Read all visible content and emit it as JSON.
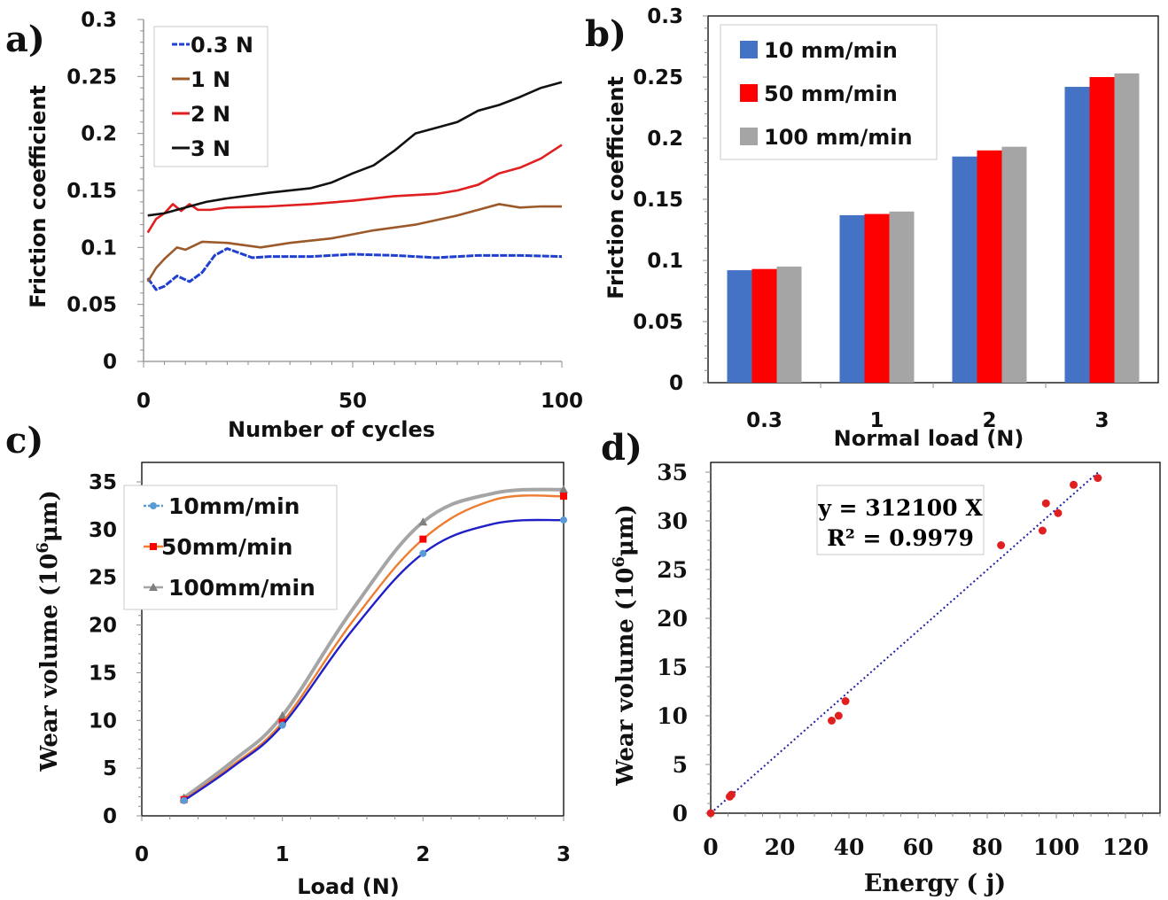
{
  "chart_data": [
    {
      "panel": "a)",
      "type": "line",
      "xlabel": "Number of cycles",
      "ylabel": "Friction coefficient",
      "xlim": [
        0,
        100
      ],
      "ylim": [
        0,
        0.3
      ],
      "xticks": [
        "0",
        "50",
        "100"
      ],
      "yticks": [
        "0",
        "0.05",
        "0.1",
        "0.15",
        "0.2",
        "0.25",
        "0.3"
      ],
      "legend_position": "top-left",
      "series": [
        {
          "name": "0.3 N",
          "color": "#1f3fd0",
          "x": [
            1,
            3,
            5,
            8,
            11,
            14,
            17,
            20,
            23,
            26,
            30,
            40,
            50,
            60,
            70,
            80,
            90,
            100
          ],
          "y": [
            0.073,
            0.063,
            0.066,
            0.075,
            0.07,
            0.078,
            0.093,
            0.099,
            0.095,
            0.091,
            0.092,
            0.092,
            0.094,
            0.093,
            0.091,
            0.093,
            0.093,
            0.092
          ]
        },
        {
          "name": "1 N",
          "color": "#9c5a2a",
          "x": [
            1,
            3,
            5,
            8,
            10,
            14,
            20,
            28,
            35,
            45,
            55,
            65,
            75,
            80,
            85,
            90,
            95,
            100
          ],
          "y": [
            0.07,
            0.082,
            0.09,
            0.1,
            0.098,
            0.105,
            0.104,
            0.1,
            0.104,
            0.108,
            0.115,
            0.12,
            0.128,
            0.133,
            0.138,
            0.135,
            0.136,
            0.136
          ]
        },
        {
          "name": "2 N",
          "color": "#e02020",
          "x": [
            1,
            3,
            5,
            7,
            9,
            11,
            13,
            16,
            20,
            30,
            40,
            50,
            60,
            70,
            75,
            80,
            85,
            90,
            95,
            100
          ],
          "y": [
            0.113,
            0.125,
            0.13,
            0.138,
            0.132,
            0.138,
            0.133,
            0.133,
            0.135,
            0.136,
            0.138,
            0.141,
            0.145,
            0.147,
            0.15,
            0.155,
            0.165,
            0.17,
            0.178,
            0.19
          ]
        },
        {
          "name": "3 N",
          "color": "#111111",
          "x": [
            1,
            5,
            10,
            15,
            20,
            30,
            40,
            45,
            50,
            55,
            60,
            65,
            70,
            75,
            80,
            85,
            90,
            95,
            100
          ],
          "y": [
            0.128,
            0.13,
            0.135,
            0.14,
            0.143,
            0.148,
            0.152,
            0.157,
            0.165,
            0.172,
            0.185,
            0.2,
            0.205,
            0.21,
            0.22,
            0.225,
            0.232,
            0.24,
            0.245
          ]
        }
      ]
    },
    {
      "panel": "b)",
      "type": "bar",
      "xlabel": "Normal load (N)",
      "ylabel": "Friction coefficient",
      "categories": [
        "0.3",
        "1",
        "2",
        "3"
      ],
      "ylim": [
        0,
        0.3
      ],
      "yticks": [
        "0",
        "0.05",
        "0.1",
        "0.15",
        "0.2",
        "0.25",
        "0.3"
      ],
      "legend_position": "top-left",
      "series": [
        {
          "name": "10 mm/min",
          "color": "#4472c4",
          "values": [
            0.092,
            0.137,
            0.185,
            0.242
          ]
        },
        {
          "name": "50 mm/min",
          "color": "#ff0000",
          "values": [
            0.093,
            0.138,
            0.19,
            0.25
          ]
        },
        {
          "name": "100 mm/min",
          "color": "#a5a5a5",
          "values": [
            0.095,
            0.14,
            0.193,
            0.253
          ]
        }
      ]
    },
    {
      "panel": "c)",
      "type": "line",
      "xlabel": "Load (N)",
      "ylabel": "Wear volume (10",
      "ylabel_sup": "6",
      "ylabel_tail": "μm)",
      "xlim": [
        0,
        3
      ],
      "ylim": [
        0,
        35
      ],
      "xticks": [
        "0",
        "1",
        "2",
        "3"
      ],
      "yticks": [
        "0",
        "5",
        "10",
        "15",
        "20",
        "25",
        "30",
        "35"
      ],
      "legend_position": "top-left",
      "series": [
        {
          "name": "10mm/min",
          "color": "#2020c8",
          "marker_color": "#5b9bd5",
          "x": [
            0.3,
            1,
            2,
            3
          ],
          "y": [
            1.6,
            9.5,
            27.5,
            31
          ]
        },
        {
          "name": "50mm/min",
          "color": "#ed7d31",
          "marker_color": "#ff0000",
          "x": [
            0.3,
            1,
            2,
            3
          ],
          "y": [
            1.7,
            9.8,
            29,
            33.5
          ]
        },
        {
          "name": "100mm/min",
          "color": "#a5a5a5",
          "marker_color": "#7f7f7f",
          "x": [
            0.3,
            1,
            2,
            3
          ],
          "y": [
            1.9,
            10.5,
            30.8,
            34.2
          ]
        }
      ]
    },
    {
      "panel": "d)",
      "type": "scatter",
      "xlabel": "Energy ( j)",
      "ylabel": "Wear volume (10",
      "ylabel_sup": "6",
      "ylabel_tail": "μm)",
      "xlim": [
        0,
        130
      ],
      "ylim": [
        0,
        35
      ],
      "xticks": [
        "0",
        "20",
        "40",
        "60",
        "80",
        "100",
        "120"
      ],
      "yticks": [
        "0",
        "5",
        "10",
        "15",
        "20",
        "25",
        "30",
        "35"
      ],
      "equation": "y = 312100 X",
      "r2": "R² = 0.9979",
      "trend_slope": 0.3121,
      "points_color": "#e02020",
      "trend_color": "#1f1fa8",
      "points": [
        [
          0,
          0
        ],
        [
          5.5,
          1.7
        ],
        [
          6,
          1.9
        ],
        [
          35,
          9.5
        ],
        [
          37,
          10
        ],
        [
          39,
          11.5
        ],
        [
          84,
          27.5
        ],
        [
          96,
          29
        ],
        [
          97,
          31.8
        ],
        [
          100.5,
          30.8
        ],
        [
          105,
          33.7
        ],
        [
          112,
          34.4
        ]
      ]
    }
  ]
}
